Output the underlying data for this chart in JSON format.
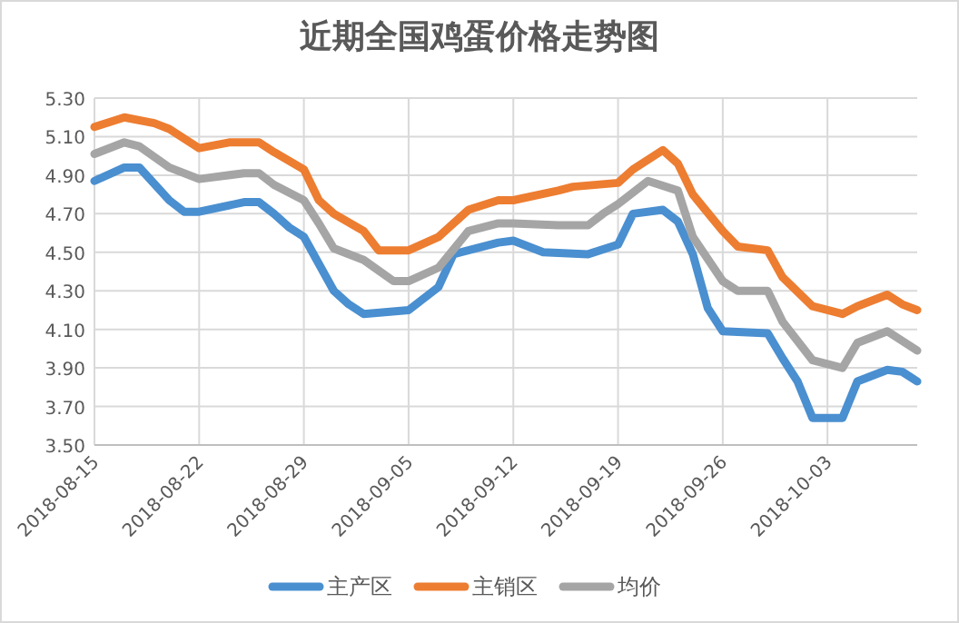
{
  "chart_data": {
    "type": "line",
    "title": "近期全国鸡蛋价格走势图",
    "xlim": [
      "2018-08-15",
      "2018-10-09"
    ],
    "xticks": [
      "2018-08-15",
      "2018-08-22",
      "2018-08-29",
      "2018-09-05",
      "2018-09-12",
      "2018-09-19",
      "2018-09-26",
      "2018-10-03"
    ],
    "ylim": [
      3.5,
      5.3
    ],
    "yticks": [
      {
        "value": 3.5,
        "label": "3.50"
      },
      {
        "value": 3.7,
        "label": "3.70"
      },
      {
        "value": 3.9,
        "label": "3.90"
      },
      {
        "value": 4.1,
        "label": "4.10"
      },
      {
        "value": 4.3,
        "label": "4.30"
      },
      {
        "value": 4.5,
        "label": "4.50"
      },
      {
        "value": 4.7,
        "label": "4.70"
      },
      {
        "value": 4.9,
        "label": "4.90"
      },
      {
        "value": 5.1,
        "label": "5.10"
      },
      {
        "value": 5.3,
        "label": "5.30"
      }
    ],
    "grid": true,
    "legend": "bottom",
    "marker": "none",
    "line_style": "solid",
    "series": [
      {
        "name": "主产区",
        "color": "#4a8fd0",
        "x": [
          "2018-08-15",
          "2018-08-17",
          "2018-08-18",
          "2018-08-20",
          "2018-08-21",
          "2018-08-22",
          "2018-08-25",
          "2018-08-26",
          "2018-08-27",
          "2018-08-28",
          "2018-08-29",
          "2018-08-31",
          "2018-09-01",
          "2018-09-02",
          "2018-09-05",
          "2018-09-07",
          "2018-09-08",
          "2018-09-11",
          "2018-09-12",
          "2018-09-14",
          "2018-09-17",
          "2018-09-19",
          "2018-09-20",
          "2018-09-22",
          "2018-09-23",
          "2018-09-24",
          "2018-09-25",
          "2018-09-26",
          "2018-09-29",
          "2018-09-30",
          "2018-10-01",
          "2018-10-02",
          "2018-10-04",
          "2018-10-05",
          "2018-10-07",
          "2018-10-08",
          "2018-10-09"
        ],
        "values": [
          4.87,
          4.94,
          4.94,
          4.77,
          4.71,
          4.71,
          4.76,
          4.76,
          4.7,
          4.63,
          4.58,
          4.3,
          4.23,
          4.18,
          4.2,
          4.32,
          4.49,
          4.55,
          4.56,
          4.5,
          4.49,
          4.54,
          4.7,
          4.72,
          4.66,
          4.49,
          4.21,
          4.09,
          4.08,
          3.95,
          3.83,
          3.64,
          3.64,
          3.83,
          3.89,
          3.88,
          3.83
        ]
      },
      {
        "name": "主销区",
        "color": "#ed7d31",
        "x": [
          "2018-08-15",
          "2018-08-17",
          "2018-08-19",
          "2018-08-20",
          "2018-08-22",
          "2018-08-24",
          "2018-08-26",
          "2018-08-27",
          "2018-08-29",
          "2018-08-30",
          "2018-08-31",
          "2018-09-02",
          "2018-09-03",
          "2018-09-05",
          "2018-09-07",
          "2018-09-09",
          "2018-09-11",
          "2018-09-12",
          "2018-09-15",
          "2018-09-16",
          "2018-09-19",
          "2018-09-20",
          "2018-09-22",
          "2018-09-23",
          "2018-09-24",
          "2018-09-26",
          "2018-09-27",
          "2018-09-29",
          "2018-09-30",
          "2018-10-02",
          "2018-10-04",
          "2018-10-05",
          "2018-10-07",
          "2018-10-08",
          "2018-10-09"
        ],
        "values": [
          5.15,
          5.2,
          5.17,
          5.14,
          5.04,
          5.07,
          5.07,
          5.02,
          4.93,
          4.77,
          4.7,
          4.61,
          4.51,
          4.51,
          4.58,
          4.72,
          4.77,
          4.77,
          4.82,
          4.84,
          4.86,
          4.93,
          5.03,
          4.96,
          4.8,
          4.61,
          4.53,
          4.51,
          4.37,
          4.22,
          4.18,
          4.22,
          4.28,
          4.23,
          4.2
        ]
      },
      {
        "name": "均价",
        "color": "#a5a5a5",
        "x": [
          "2018-08-15",
          "2018-08-17",
          "2018-08-18",
          "2018-08-20",
          "2018-08-22",
          "2018-08-25",
          "2018-08-26",
          "2018-08-27",
          "2018-08-29",
          "2018-08-30",
          "2018-08-31",
          "2018-09-02",
          "2018-09-04",
          "2018-09-05",
          "2018-09-07",
          "2018-09-09",
          "2018-09-11",
          "2018-09-12",
          "2018-09-15",
          "2018-09-17",
          "2018-09-18",
          "2018-09-19",
          "2018-09-21",
          "2018-09-23",
          "2018-09-24",
          "2018-09-26",
          "2018-09-27",
          "2018-09-29",
          "2018-09-30",
          "2018-10-02",
          "2018-10-04",
          "2018-10-05",
          "2018-10-07",
          "2018-10-09"
        ],
        "values": [
          5.01,
          5.07,
          5.05,
          4.94,
          4.88,
          4.91,
          4.91,
          4.85,
          4.77,
          4.65,
          4.52,
          4.46,
          4.35,
          4.35,
          4.42,
          4.61,
          4.65,
          4.65,
          4.64,
          4.64,
          4.7,
          4.75,
          4.87,
          4.82,
          4.58,
          4.35,
          4.3,
          4.3,
          4.14,
          3.94,
          3.9,
          4.03,
          4.09,
          3.99
        ]
      }
    ]
  }
}
